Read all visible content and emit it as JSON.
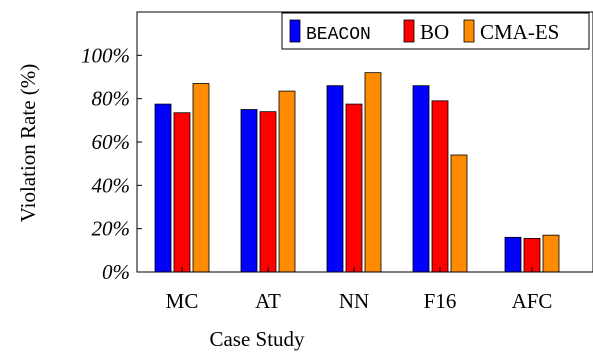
{
  "chart_data": {
    "type": "bar",
    "title": "",
    "xlabel": "Case Study",
    "ylabel": "Violation Rate (%)",
    "categories": [
      "MC",
      "AT",
      "NN",
      "F16",
      "AFC"
    ],
    "ylim": [
      0,
      120
    ],
    "yticks": [
      0,
      20,
      40,
      60,
      80,
      100
    ],
    "ytick_labels": [
      "0%",
      "20%",
      "40%",
      "60%",
      "80%",
      "100%"
    ],
    "grid": false,
    "legend_position": "top-right",
    "series": [
      {
        "name": "BEACON",
        "color": "#0000ff",
        "values": [
          77.5,
          75,
          86,
          86,
          16
        ]
      },
      {
        "name": "BO",
        "color": "#ff0000",
        "values": [
          73.5,
          74,
          77.5,
          79,
          15.5
        ]
      },
      {
        "name": "CMA-ES",
        "color": "#ff8c00",
        "values": [
          87,
          83.5,
          92,
          54,
          17
        ]
      }
    ]
  }
}
